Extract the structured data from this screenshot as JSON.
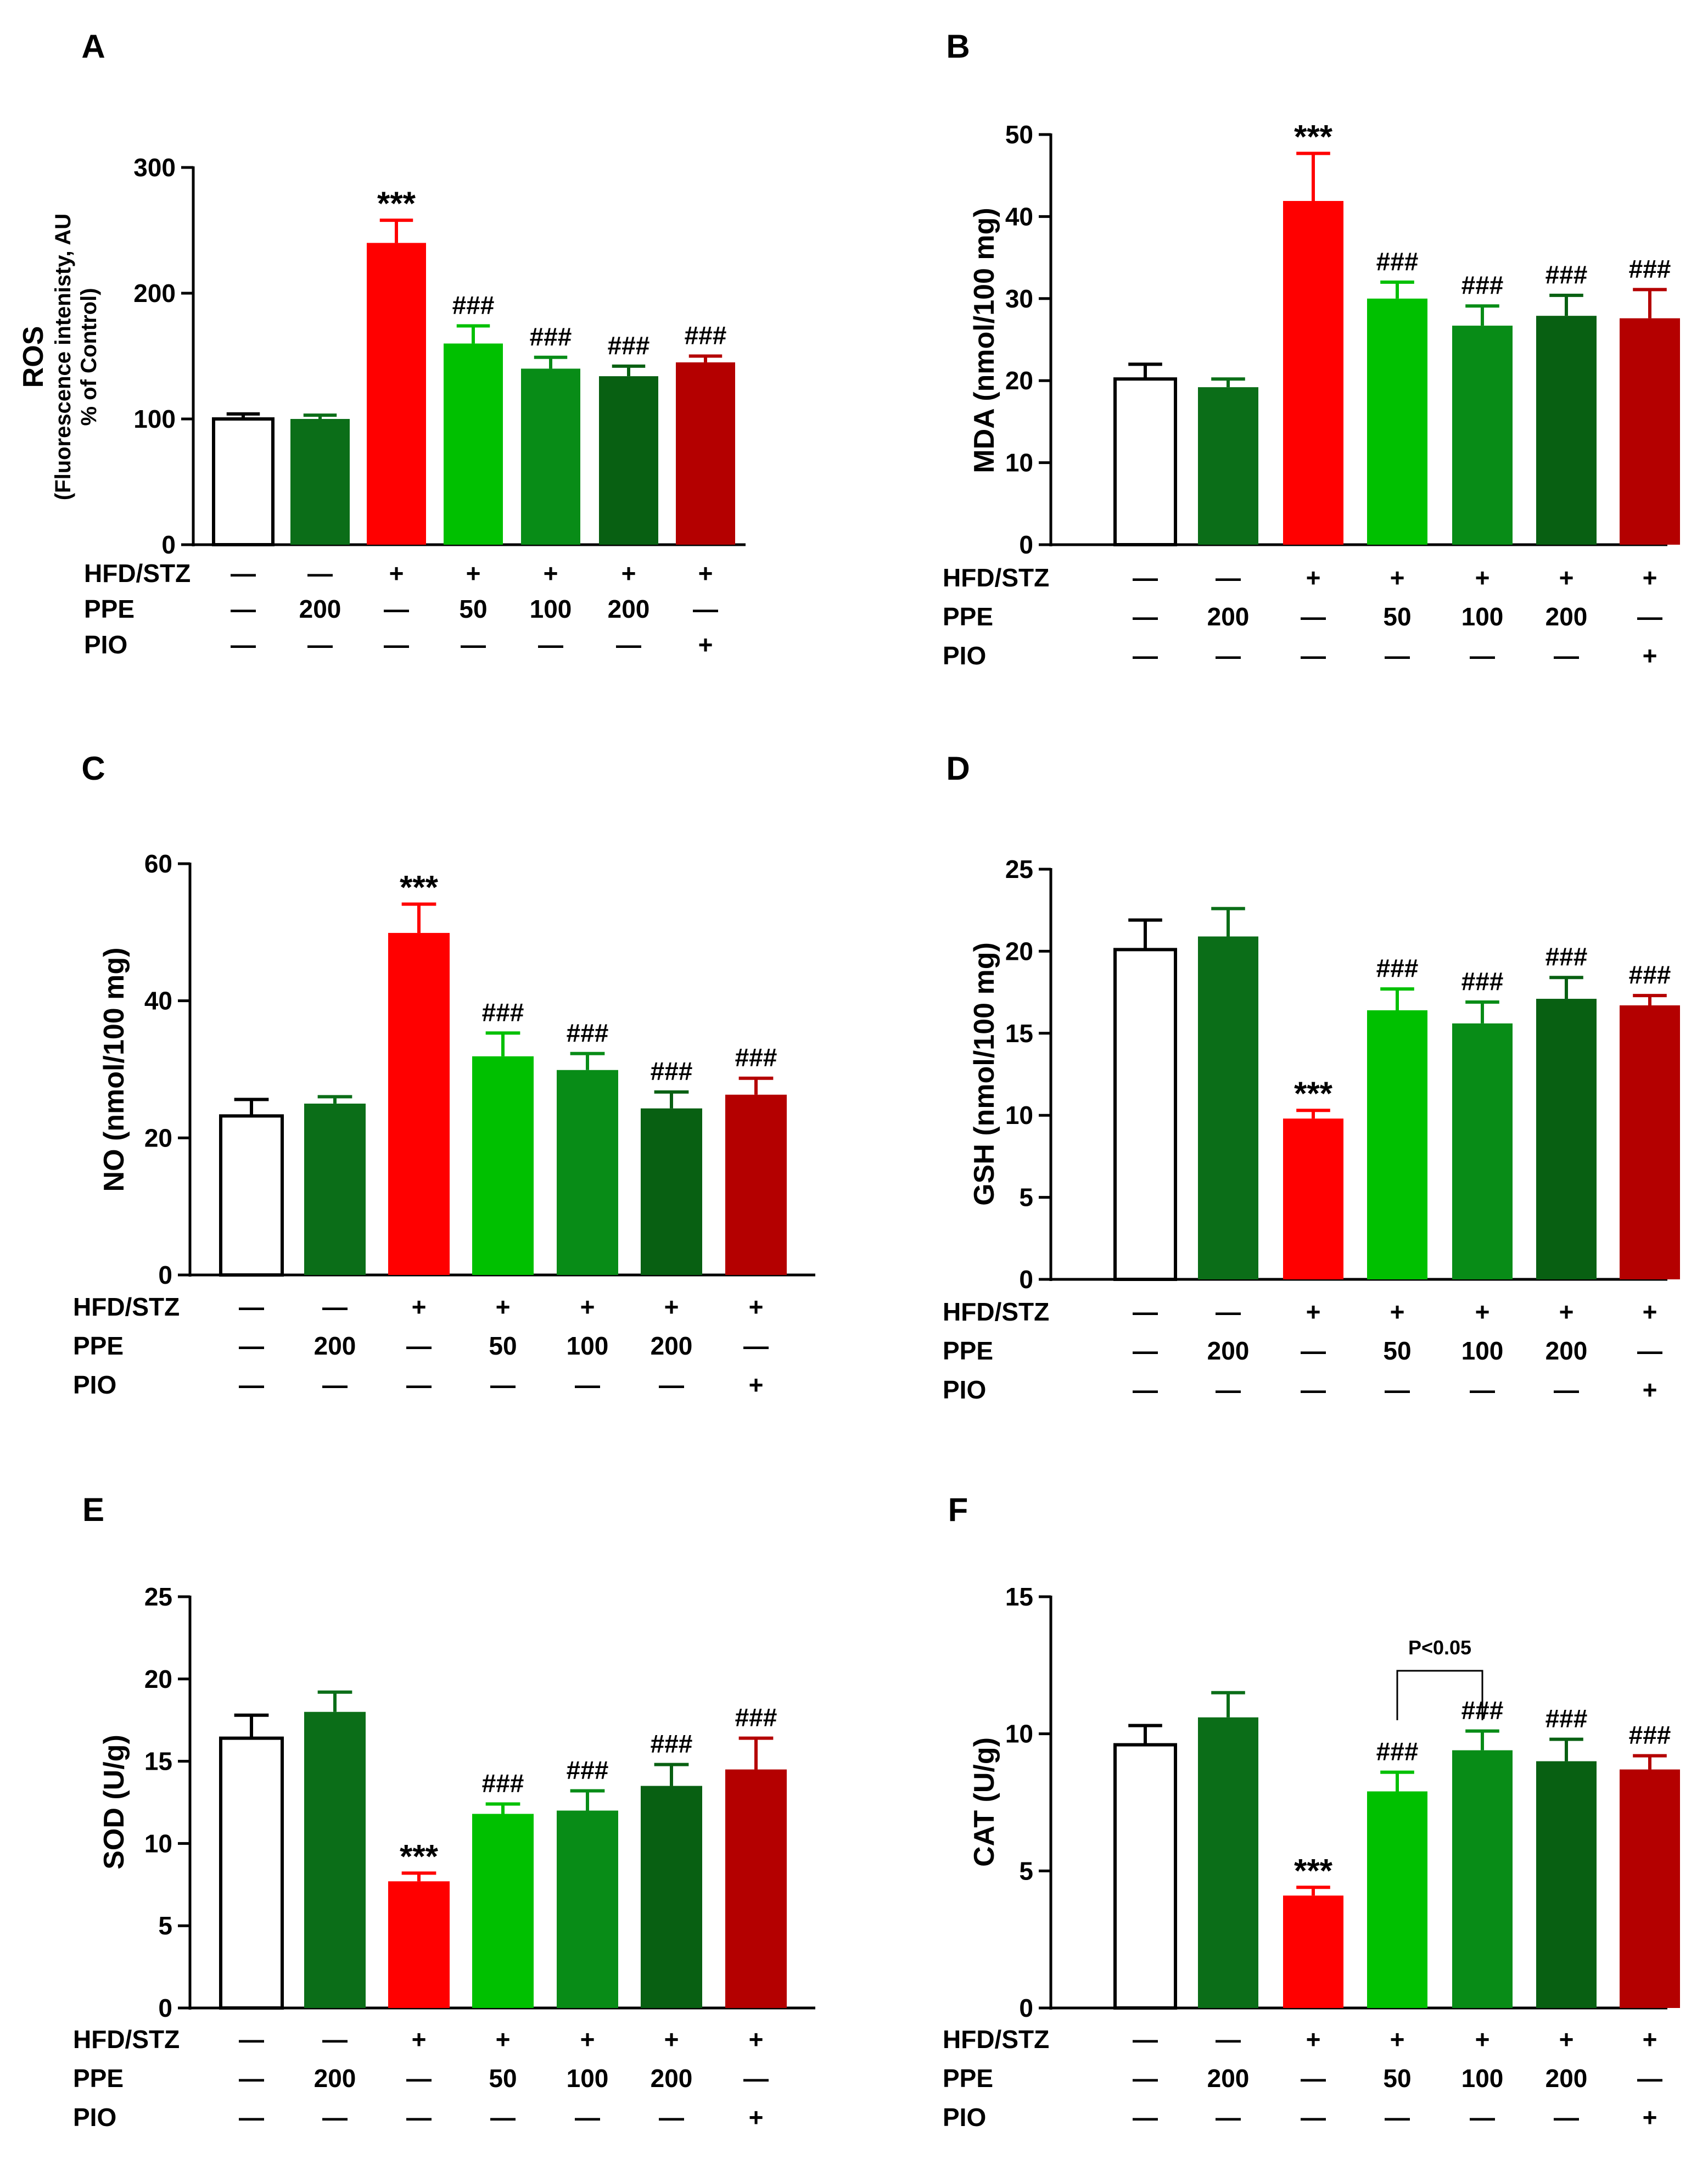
{
  "colors": {
    "control": "#ffffff",
    "ppe_only": "#0b6e18",
    "model": "#ff0000",
    "ppe50": "#00c000",
    "ppe100": "#088c17",
    "ppe200": "#086012",
    "pio": "#b40000",
    "axis": "#000000"
  },
  "row_labels": [
    "HFD/STZ",
    "PPE",
    "PIO"
  ],
  "conditions": [
    [
      "—",
      "—",
      "+",
      "+",
      "+",
      "+",
      "+"
    ],
    [
      "—",
      "200",
      "—",
      "50",
      "100",
      "200",
      "—"
    ],
    [
      "—",
      "—",
      "—",
      "—",
      "—",
      "—",
      "+"
    ]
  ],
  "chart_data": [
    {
      "panel": "A",
      "type": "bar",
      "ylabel": "ROS",
      "ylabel_sub": [
        "(Fluorescence intenisty, AU",
        "% of Control)"
      ],
      "ylim": [
        0,
        300
      ],
      "yticks": [
        0,
        100,
        200,
        300
      ],
      "categories": [
        "Control",
        "PPE 200",
        "HFD/STZ",
        "HFD/STZ + PPE 50",
        "HFD/STZ + PPE 100",
        "HFD/STZ + PPE 200",
        "HFD/STZ + PIO"
      ],
      "values": [
        100,
        100,
        240,
        160,
        140,
        134,
        145
      ],
      "errors": [
        4,
        3,
        18,
        14,
        9,
        8,
        5
      ],
      "annotations": [
        "",
        "",
        "***",
        "###",
        "###",
        "###",
        "###"
      ]
    },
    {
      "panel": "B",
      "type": "bar",
      "ylabel": "MDA (nmol/100 mg)",
      "ylim": [
        0,
        50
      ],
      "yticks": [
        0,
        10,
        20,
        30,
        40,
        50
      ],
      "categories": [
        "Control",
        "PPE 200",
        "HFD/STZ",
        "HFD/STZ + PPE 50",
        "HFD/STZ + PPE 100",
        "HFD/STZ + PPE 200",
        "HFD/STZ + PIO"
      ],
      "values": [
        20.2,
        19.2,
        41.9,
        30.0,
        26.7,
        27.9,
        27.6
      ],
      "errors": [
        1.8,
        1.0,
        5.8,
        2.0,
        2.4,
        2.5,
        3.5
      ],
      "annotations": [
        "",
        "",
        "***",
        "###",
        "###",
        "###",
        "###"
      ]
    },
    {
      "panel": "C",
      "type": "bar",
      "ylabel": "NO (nmol/100 mg)",
      "ylim": [
        0,
        60
      ],
      "yticks": [
        0,
        20,
        40,
        60
      ],
      "categories": [
        "Control",
        "PPE 200",
        "HFD/STZ",
        "HFD/STZ + PPE 50",
        "HFD/STZ + PPE 100",
        "HFD/STZ + PPE 200",
        "HFD/STZ + PIO"
      ],
      "values": [
        23.2,
        25.0,
        49.9,
        31.9,
        29.9,
        24.3,
        26.3
      ],
      "errors": [
        2.4,
        1.0,
        4.2,
        3.4,
        2.4,
        2.4,
        2.4
      ],
      "annotations": [
        "",
        "",
        "***",
        "###",
        "###",
        "###",
        "###"
      ]
    },
    {
      "panel": "D",
      "type": "bar",
      "ylabel": "GSH (nmol/100 mg)",
      "ylim": [
        0,
        25
      ],
      "yticks": [
        0,
        5,
        10,
        15,
        20,
        25
      ],
      "categories": [
        "Control",
        "PPE 200",
        "HFD/STZ",
        "HFD/STZ + PPE 50",
        "HFD/STZ + PPE 100",
        "HFD/STZ + PPE 200",
        "HFD/STZ + PIO"
      ],
      "values": [
        20.1,
        20.9,
        9.8,
        16.4,
        15.6,
        17.1,
        16.7
      ],
      "errors": [
        1.8,
        1.7,
        0.5,
        1.3,
        1.3,
        1.3,
        0.6
      ],
      "annotations": [
        "",
        "",
        "***",
        "###",
        "###",
        "###",
        "###"
      ]
    },
    {
      "panel": "E",
      "type": "bar",
      "ylabel": "SOD (U/g)",
      "ylim": [
        0,
        25
      ],
      "yticks": [
        0,
        5,
        10,
        15,
        20,
        25
      ],
      "categories": [
        "Control",
        "PPE 200",
        "HFD/STZ",
        "HFD/STZ + PPE 50",
        "HFD/STZ + PPE 100",
        "HFD/STZ + PPE 200",
        "HFD/STZ + PIO"
      ],
      "values": [
        16.4,
        18.0,
        7.7,
        11.8,
        12.0,
        13.5,
        14.5
      ],
      "errors": [
        1.4,
        1.2,
        0.5,
        0.6,
        1.2,
        1.3,
        1.9
      ],
      "annotations": [
        "",
        "",
        "***",
        "###",
        "###",
        "###",
        "###"
      ]
    },
    {
      "panel": "F",
      "type": "bar",
      "ylabel": "CAT (U/g)",
      "ylim": [
        0,
        15
      ],
      "yticks": [
        0,
        5,
        10,
        15
      ],
      "categories": [
        "Control",
        "PPE 200",
        "HFD/STZ",
        "HFD/STZ + PPE 50",
        "HFD/STZ + PPE 100",
        "HFD/STZ + PPE 200",
        "HFD/STZ + PIO"
      ],
      "values": [
        9.6,
        10.6,
        4.1,
        7.9,
        9.4,
        9.0,
        8.7
      ],
      "errors": [
        0.7,
        0.9,
        0.3,
        0.7,
        0.7,
        0.8,
        0.5
      ],
      "annotations": [
        "",
        "",
        "***",
        "###",
        "###",
        "###",
        "###"
      ],
      "comparison": {
        "from": 3,
        "to": 4,
        "label": "P<0.05"
      }
    }
  ]
}
